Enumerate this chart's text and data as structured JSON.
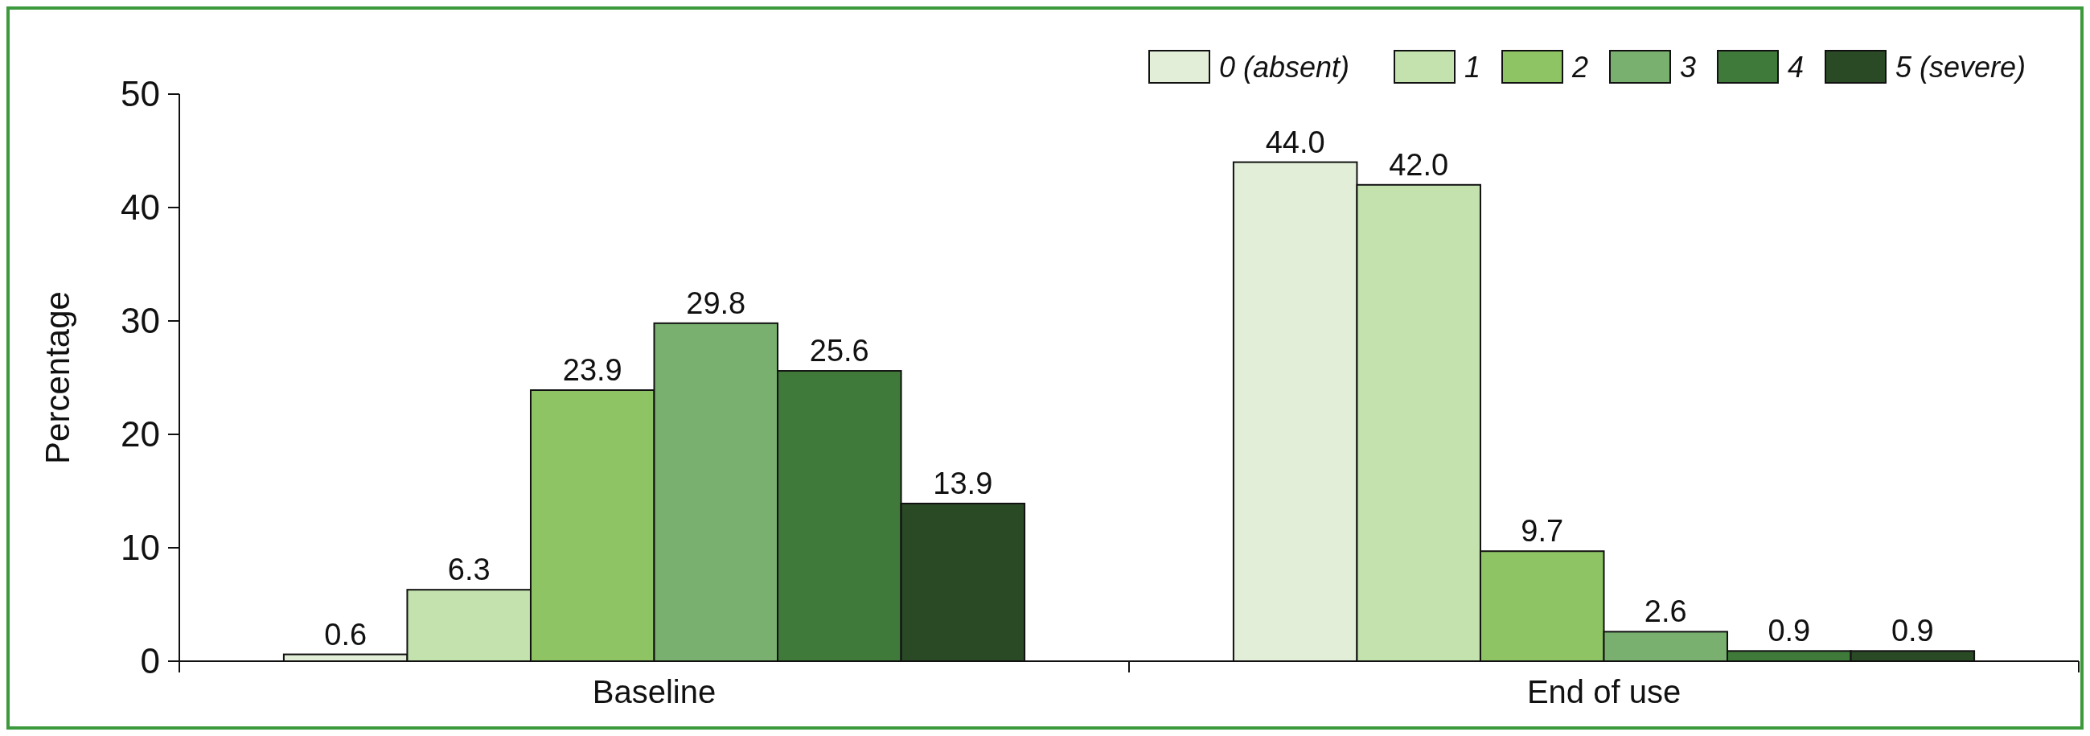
{
  "chart_data": {
    "type": "bar",
    "ylabel": "Percentage",
    "categories": [
      "Baseline",
      "End of use"
    ],
    "ylim": [
      0,
      50
    ],
    "yticks": [
      0,
      10,
      20,
      30,
      40,
      50
    ],
    "legend": "top right",
    "series": [
      {
        "name": "0 (absent)",
        "color": "#e2eed8",
        "values": [
          0.6,
          44.0
        ],
        "value_labels": [
          "0.6",
          "44.0"
        ]
      },
      {
        "name": "1",
        "color": "#c3e2ad",
        "values": [
          6.3,
          42.0
        ],
        "value_labels": [
          "6.3",
          "42.0"
        ]
      },
      {
        "name": "2",
        "color": "#8fc465",
        "values": [
          23.9,
          9.7
        ],
        "value_labels": [
          "23.9",
          "9.7"
        ]
      },
      {
        "name": "3",
        "color": "#79b06f",
        "values": [
          29.8,
          2.6
        ],
        "value_labels": [
          "29.8",
          "2.6"
        ]
      },
      {
        "name": "4",
        "color": "#407a3a",
        "values": [
          25.6,
          0.9
        ],
        "value_labels": [
          "25.6",
          "0.9"
        ]
      },
      {
        "name": "5 (severe)",
        "color": "#2a4a26",
        "values": [
          13.9,
          0.9
        ],
        "value_labels": [
          "13.9",
          "0.9"
        ]
      }
    ]
  }
}
